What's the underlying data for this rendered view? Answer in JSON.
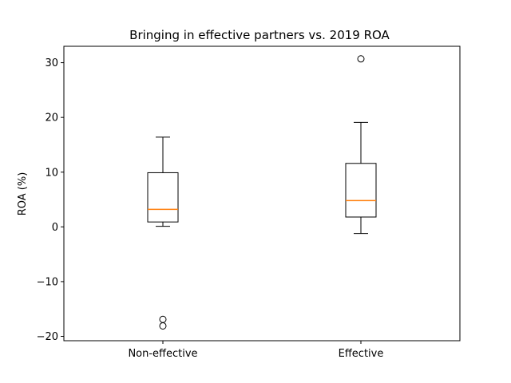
{
  "chart_data": {
    "type": "box",
    "title": "Bringing in effective partners vs. 2019 ROA",
    "xlabel": "",
    "ylabel": "ROA (%)",
    "ylim": [
      -20.8,
      33.0
    ],
    "yticks": [
      -20,
      -10,
      0,
      10,
      20,
      30
    ],
    "categories": [
      "Non-effective",
      "Effective"
    ],
    "boxes": [
      {
        "category": "Non-effective",
        "whisker_low": 0.1,
        "q1": 0.9,
        "median": 3.2,
        "q3": 9.9,
        "whisker_high": 16.4,
        "outliers": [
          -16.9,
          -18.1
        ]
      },
      {
        "category": "Effective",
        "whisker_low": -1.2,
        "q1": 1.8,
        "median": 4.8,
        "q3": 11.6,
        "whisker_high": 19.1,
        "outliers": [
          30.7
        ]
      }
    ],
    "grid": false,
    "legend": "none",
    "colors": {
      "box": "#000000",
      "median": "#ff7f0e",
      "background": "#ffffff"
    }
  }
}
